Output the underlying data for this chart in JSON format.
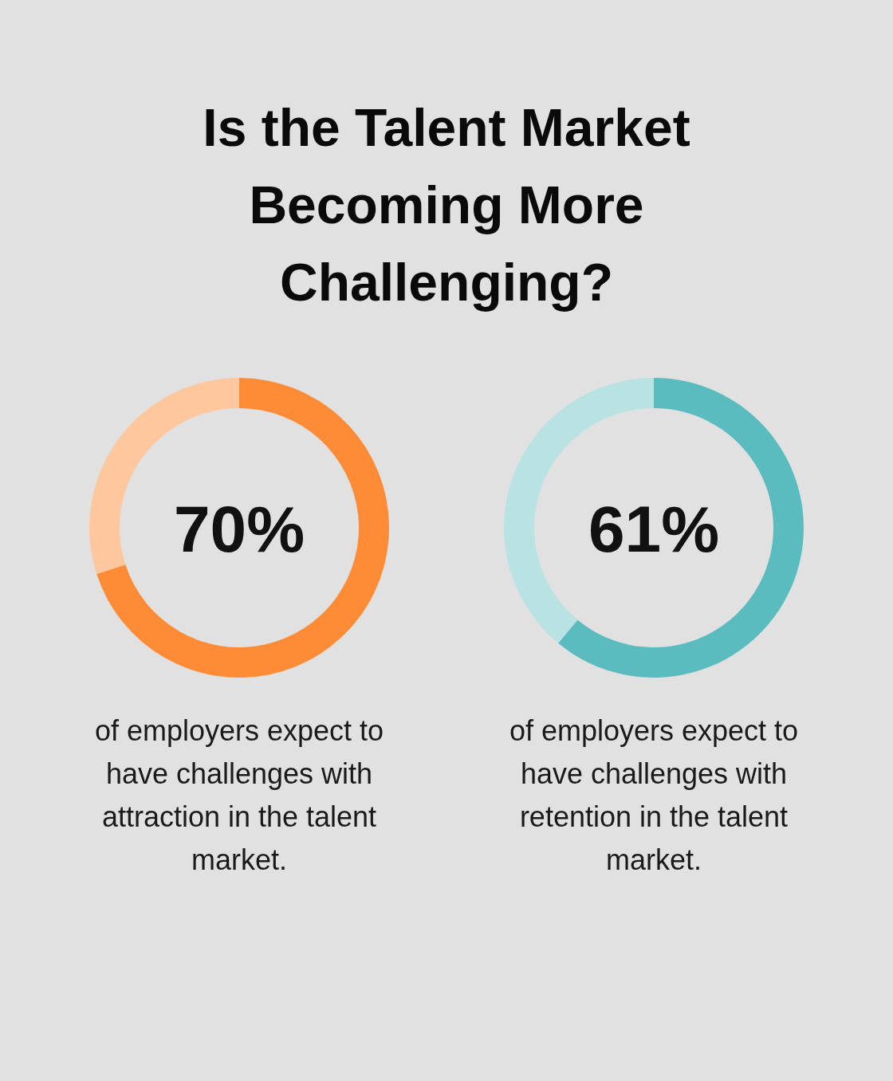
{
  "chart_data": [
    {
      "type": "donut",
      "title": "Is the Talent Market Becoming More Challenging?",
      "categories": [
        null,
        null
      ],
      "values": [
        70,
        30
      ],
      "colors": [
        "#fe8c36",
        "#fec79d"
      ],
      "value_labels": [
        "70%",
        null
      ],
      "annotations": [
        "of employers expect to have challenges with attraction in the talent market."
      ]
    },
    {
      "type": "donut",
      "categories": [
        null,
        null
      ],
      "values": [
        61,
        39
      ],
      "colors": [
        "#5bbcbf",
        "#b9e2e3"
      ],
      "value_labels": [
        "61%",
        null
      ],
      "annotations": [
        "of employers expect to have challenges with retention in the talent market."
      ]
    }
  ]
}
